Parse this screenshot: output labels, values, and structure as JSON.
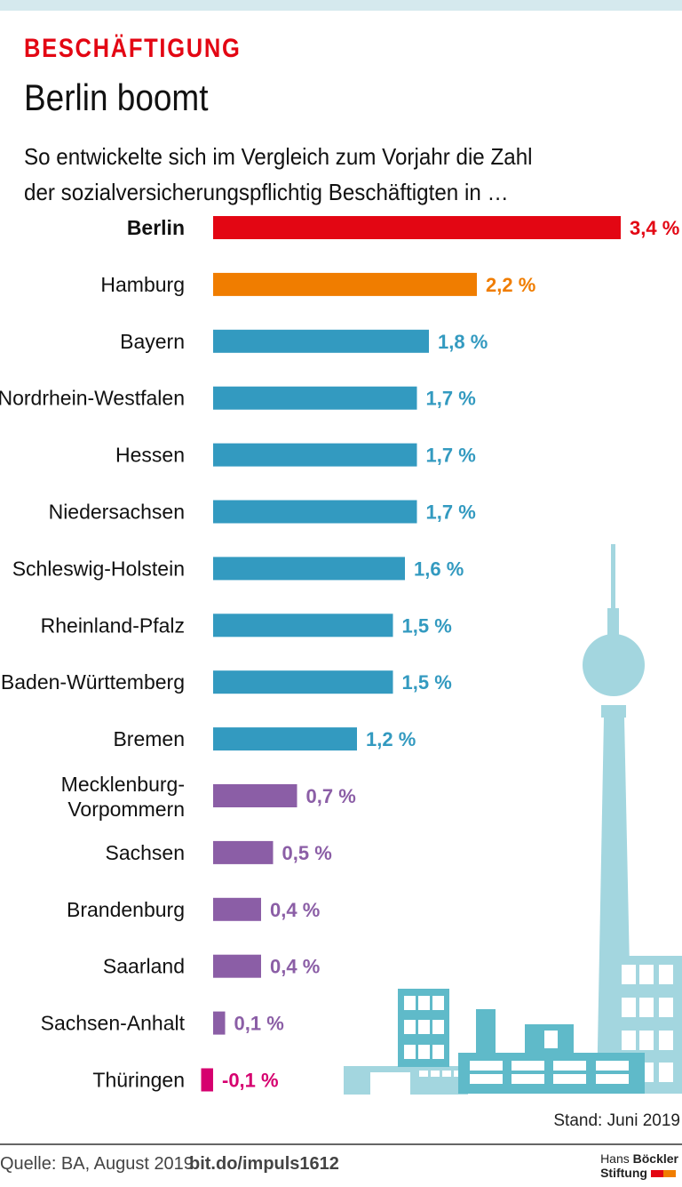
{
  "header": {
    "kicker": "BESCHÄFTIGUNG",
    "title": "Berlin boomt",
    "subtitle_line1": "So entwickelte sich im Vergleich zum Vorjahr die Zahl",
    "subtitle_line2": "der sozialversicherungspflichtig Beschäftigten in …"
  },
  "chart_data": {
    "type": "bar",
    "orientation": "horizontal",
    "unit": "%",
    "categories": [
      "Berlin",
      "Hamburg",
      "Bayern",
      "Nordrhein-Westfalen",
      "Hessen",
      "Niedersachsen",
      "Schleswig-Holstein",
      "Rheinland-Pfalz",
      "Baden-Württemberg",
      "Bremen",
      "Mecklenburg-Vorpommern",
      "Sachsen",
      "Brandenburg",
      "Saarland",
      "Sachsen-Anhalt",
      "Thüringen"
    ],
    "values": [
      3.4,
      2.2,
      1.8,
      1.7,
      1.7,
      1.7,
      1.6,
      1.5,
      1.5,
      1.2,
      0.7,
      0.5,
      0.4,
      0.4,
      0.1,
      -0.1
    ],
    "value_labels": [
      "3,4 %",
      "2,2 %",
      "1,8 %",
      "1,7 %",
      "1,7 %",
      "1,7 %",
      "1,6 %",
      "1,5 %",
      "1,5 %",
      "1,2 %",
      "0,7 %",
      "0,5 %",
      "0,4 %",
      "0,4 %",
      "0,1 %",
      "-0,1 %"
    ],
    "colors": [
      "#e30613",
      "#f07d00",
      "#339ac0",
      "#339ac0",
      "#339ac0",
      "#339ac0",
      "#339ac0",
      "#339ac0",
      "#339ac0",
      "#339ac0",
      "#8b5ea6",
      "#8b5ea6",
      "#8b5ea6",
      "#8b5ea6",
      "#8b5ea6",
      "#d6006f"
    ],
    "grid": false
  },
  "footer": {
    "stand": "Stand: Juni 2019",
    "source": "Quelle: BA, August 2019",
    "link": "bit.do/impuls1612",
    "logo_line1a": "Hans ",
    "logo_line1b": "Böckler",
    "logo_line2": "Stiftung",
    "logo_colors": [
      "#e30613",
      "#f07d00"
    ]
  }
}
